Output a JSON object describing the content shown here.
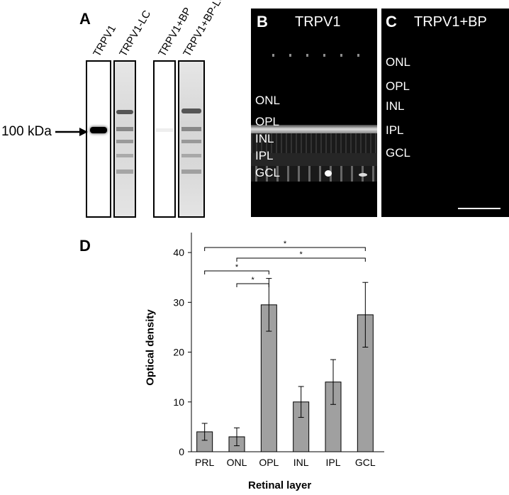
{
  "panel_a": {
    "letter": "A",
    "lanes": [
      "TRPV1",
      "TRPV1-LC",
      "TRPV1+BP",
      "TRPV1+BP-LC"
    ],
    "marker": "100 kDa"
  },
  "panel_b": {
    "letter": "B",
    "title": "TRPV1",
    "layers": [
      "ONL",
      "OPL",
      "INL",
      "IPL",
      "GCL"
    ]
  },
  "panel_c": {
    "letter": "C",
    "title": "TRPV1+BP",
    "layers": [
      "ONL",
      "OPL",
      "INL",
      "IPL",
      "GCL"
    ]
  },
  "panel_d": {
    "letter": "D"
  },
  "chart_data": {
    "type": "bar",
    "categories": [
      "PRL",
      "ONL",
      "OPL",
      "INL",
      "IPL",
      "GCL"
    ],
    "values": [
      4,
      3,
      29.5,
      10,
      14,
      27.5
    ],
    "errors": [
      1.7,
      1.8,
      5.3,
      3.1,
      4.5,
      6.5
    ],
    "xlabel": "Retinal layer",
    "ylabel": "Optical density",
    "ylim": [
      0,
      44
    ],
    "yticks": [
      0,
      10,
      20,
      30,
      40
    ],
    "bar_color": "#a0a0a0",
    "significance": [
      {
        "from": "PRL",
        "to": "GCL",
        "label": "*"
      },
      {
        "from": "ONL",
        "to": "GCL",
        "label": "*"
      },
      {
        "from": "PRL",
        "to": "OPL",
        "label": "*"
      },
      {
        "from": "ONL",
        "to": "OPL",
        "label": "*"
      }
    ]
  }
}
